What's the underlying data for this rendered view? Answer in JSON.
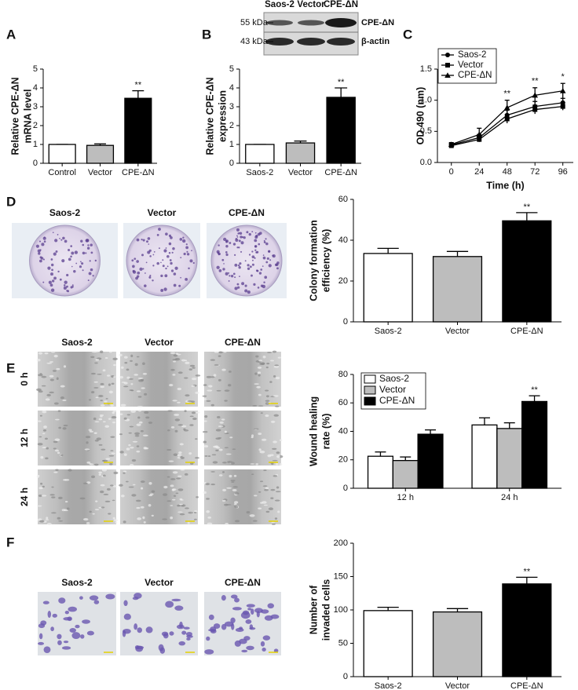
{
  "chart_data": [
    {
      "type": "bar",
      "panel": "A",
      "ylabel": [
        "Relative CPE-ΔN",
        "mRNA level"
      ],
      "categories": [
        "Control",
        "Vector",
        "CPE-ΔN"
      ],
      "values": [
        1,
        0.95,
        3.45
      ],
      "errors": [
        0,
        0.08,
        0.4
      ],
      "colors": [
        "#ffffff",
        "#bdbdbd",
        "#000000"
      ],
      "significance": [
        null,
        null,
        "**"
      ],
      "ylim": [
        0,
        5
      ],
      "yticks": [
        0,
        1,
        2,
        3,
        4,
        5
      ]
    },
    {
      "type": "bar",
      "panel": "B",
      "ylabel": [
        "Relative CPE-ΔN",
        "expression"
      ],
      "categories": [
        "Saos-2",
        "Vector",
        "CPE-ΔN"
      ],
      "values": [
        1,
        1.08,
        3.5
      ],
      "errors": [
        0,
        0.1,
        0.5
      ],
      "colors": [
        "#ffffff",
        "#bdbdbd",
        "#000000"
      ],
      "significance": [
        null,
        null,
        "**"
      ],
      "ylim": [
        0,
        5
      ],
      "yticks": [
        0,
        1,
        2,
        3,
        4,
        5
      ],
      "blot": {
        "lanes": [
          "Saos-2",
          "Vector",
          "CPE-ΔN"
        ],
        "markers": [
          "55 kDa",
          "43 kDa"
        ],
        "proteins": [
          "CPE-ΔN",
          "β-actin"
        ]
      }
    },
    {
      "type": "line",
      "panel": "C",
      "ylabel": [
        "OD 490 (nm)"
      ],
      "xlabel": "Time (h)",
      "x": [
        0,
        24,
        48,
        72,
        96
      ],
      "xlim": [
        -12,
        105
      ],
      "xticks": [
        0,
        24,
        48,
        72,
        96
      ],
      "ylim": [
        0,
        1.5
      ],
      "yticks": [
        {
          "value": 0,
          "label": "0.0"
        },
        {
          "value": 0.5,
          "label": "0.5"
        },
        {
          "value": 1,
          "label": "1.0"
        },
        {
          "value": 1.5,
          "label": "1.5"
        }
      ],
      "legend": "top-left",
      "series": [
        {
          "name": "Saos-2",
          "color": "#000000",
          "marker": "circle",
          "values": [
            0.28,
            0.4,
            0.76,
            0.9,
            0.96
          ],
          "errors": [
            0.03,
            0.05,
            0.08,
            0.08,
            0.07
          ]
        },
        {
          "name": "Vector",
          "color": "#000000",
          "marker": "square",
          "values": [
            0.27,
            0.37,
            0.7,
            0.85,
            0.9
          ],
          "errors": [
            0.03,
            0.04,
            0.07,
            0.07,
            0.06
          ]
        },
        {
          "name": "CPE-ΔN",
          "color": "#000000",
          "marker": "triangle",
          "values": [
            0.29,
            0.45,
            0.88,
            1.08,
            1.15
          ],
          "errors": [
            0.03,
            0.1,
            0.12,
            0.12,
            0.12
          ],
          "significance": [
            null,
            null,
            "**",
            "**",
            "*"
          ]
        }
      ]
    },
    {
      "type": "bar",
      "panel": "D",
      "ylabel": [
        "Colony formation",
        "efficiency (%)"
      ],
      "categories": [
        "Saos-2",
        "Vector",
        "CPE-ΔN"
      ],
      "values": [
        33.5,
        32,
        49.5
      ],
      "errors": [
        2.5,
        2.5,
        4
      ],
      "colors": [
        "#ffffff",
        "#bdbdbd",
        "#000000"
      ],
      "significance": [
        null,
        null,
        "**"
      ],
      "ylim": [
        0,
        60
      ],
      "yticks": [
        0,
        20,
        40,
        60
      ],
      "image_labels": [
        "Saos-2",
        "Vector",
        "CPE-ΔN"
      ]
    },
    {
      "type": "bar",
      "panel": "E",
      "ylabel": [
        "Wound healing",
        "rate (%)"
      ],
      "categories": [
        "12 h",
        "24 h"
      ],
      "legend": "top-left",
      "series": [
        {
          "name": "Saos-2",
          "color": "#ffffff",
          "values": [
            22.5,
            44.5
          ],
          "errors": [
            3,
            5
          ]
        },
        {
          "name": "Vector",
          "color": "#bdbdbd",
          "values": [
            19.5,
            42
          ],
          "errors": [
            2.5,
            4
          ]
        },
        {
          "name": "CPE-ΔN",
          "color": "#000000",
          "values": [
            38,
            61
          ],
          "errors": [
            3,
            4
          ],
          "significance": [
            null,
            "**"
          ]
        }
      ],
      "ylim": [
        0,
        80
      ],
      "yticks": [
        0,
        20,
        40,
        60,
        80
      ],
      "image_labels": [
        "Saos-2",
        "Vector",
        "CPE-ΔN"
      ],
      "image_rows": [
        "0 h",
        "12 h",
        "24 h"
      ]
    },
    {
      "type": "bar",
      "panel": "F",
      "ylabel": [
        "Number of",
        "invaded cells"
      ],
      "categories": [
        "Saos-2",
        "Vector",
        "CPE-ΔN"
      ],
      "values": [
        99,
        97,
        139
      ],
      "errors": [
        5,
        5,
        10
      ],
      "colors": [
        "#ffffff",
        "#bdbdbd",
        "#000000"
      ],
      "significance": [
        null,
        null,
        "**"
      ],
      "ylim": [
        0,
        200
      ],
      "yticks": [
        0,
        50,
        100,
        150,
        200
      ],
      "image_labels": [
        "Saos-2",
        "Vector",
        "CPE-ΔN"
      ]
    }
  ]
}
